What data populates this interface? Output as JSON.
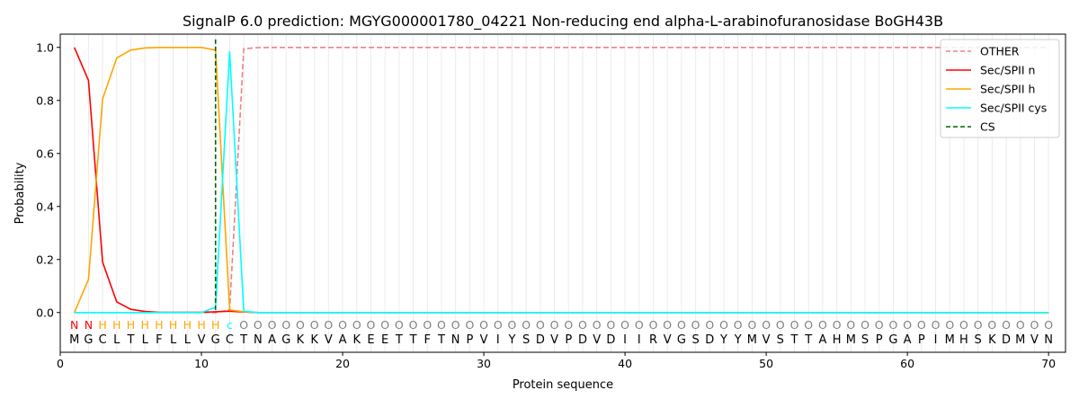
{
  "chart_data": {
    "type": "line",
    "title": "SignalP 6.0 prediction: MGYG000001780_04221 Non-reducing end alpha-L-arabinofuranosidase BoGH43B",
    "xlabel": "Protein sequence",
    "ylabel": "Probability",
    "xlim": [
      0,
      71.2
    ],
    "ylim": [
      -0.15,
      1.05
    ],
    "xticks": [
      0,
      10,
      20,
      30,
      40,
      50,
      60,
      70
    ],
    "yticks": [
      0.0,
      0.2,
      0.4,
      0.6,
      0.8,
      1.0
    ],
    "grid": "vertical at each residue",
    "legend_position": "top-right",
    "sequence": [
      "M",
      "G",
      "C",
      "L",
      "T",
      "L",
      "F",
      "L",
      "L",
      "V",
      "G",
      "C",
      "T",
      "N",
      "A",
      "G",
      "K",
      "K",
      "V",
      "A",
      "K",
      "E",
      "E",
      "T",
      "T",
      "F",
      "T",
      "N",
      "P",
      "V",
      "I",
      "Y",
      "S",
      "D",
      "V",
      "P",
      "D",
      "V",
      "D",
      "I",
      "I",
      "R",
      "V",
      "G",
      "S",
      "D",
      "Y",
      "Y",
      "M",
      "V",
      "S",
      "T",
      "T",
      "A",
      "H",
      "M",
      "S",
      "P",
      "G",
      "A",
      "P",
      "I",
      "M",
      "H",
      "S",
      "K",
      "D",
      "M",
      "V",
      "N"
    ],
    "region_labels": [
      "N",
      "N",
      "H",
      "H",
      "H",
      "H",
      "H",
      "H",
      "H",
      "H",
      "H",
      "c",
      "O",
      "O",
      "O",
      "O",
      "O",
      "O",
      "O",
      "O",
      "O",
      "O",
      "O",
      "O",
      "O",
      "O",
      "O",
      "O",
      "O",
      "O",
      "O",
      "O",
      "O",
      "O",
      "O",
      "O",
      "O",
      "O",
      "O",
      "O",
      "O",
      "O",
      "O",
      "O",
      "O",
      "O",
      "O",
      "O",
      "O",
      "O",
      "O",
      "O",
      "O",
      "O",
      "O",
      "O",
      "O",
      "O",
      "O",
      "O",
      "O",
      "O",
      "O",
      "O",
      "O",
      "O",
      "O",
      "O",
      "O",
      "O"
    ],
    "region_colors": {
      "N": "#ff0000",
      "H": "#ffa500",
      "c": "#00ffff",
      "O": "#808080"
    },
    "cleavage_site": 11,
    "series": [
      {
        "name": "OTHER",
        "color": "#f08080",
        "dash": true,
        "head": [
          0,
          0,
          0,
          0,
          0,
          0,
          0,
          0,
          0,
          0,
          0,
          0.01,
          0.995,
          0.999
        ],
        "tail": 1.0
      },
      {
        "name": "Sec/SPII n",
        "color": "#ff0000",
        "dash": false,
        "head": [
          1.0,
          0.875,
          0.19,
          0.04,
          0.012,
          0.004,
          0.001,
          0.001,
          0.001,
          0.001,
          0.003,
          0.005,
          0.002,
          0
        ],
        "tail": 0
      },
      {
        "name": "Sec/SPII h",
        "color": "#ffa500",
        "dash": false,
        "head": [
          0,
          0.125,
          0.805,
          0.96,
          0.99,
          0.998,
          1.0,
          1.0,
          1.0,
          1.0,
          0.99,
          0.01,
          0.003,
          0
        ],
        "tail": 0
      },
      {
        "name": "Sec/SPII cys",
        "color": "#00ffff",
        "dash": false,
        "head": [
          0,
          0,
          0,
          0,
          0,
          0,
          0,
          0,
          0,
          0,
          0.02,
          0.985,
          0.005,
          0
        ],
        "tail": 0
      },
      {
        "name": "CS",
        "color": "#006400",
        "dash": true,
        "head": [],
        "tail": null
      }
    ]
  }
}
